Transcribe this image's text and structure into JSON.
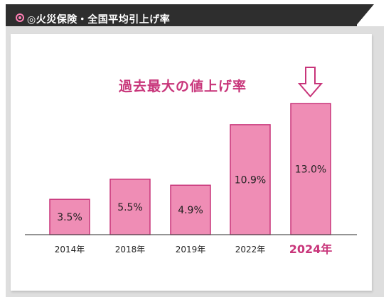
{
  "header": {
    "title": "◎火災保険・全国平均引上げ率"
  },
  "annotation": "過去最大の値上げ率",
  "colors": {
    "bar_fill": "#ef8db5",
    "bar_stroke": "#c8357a",
    "highlight_label": "#c8357a",
    "tab_bg": "#2e2e2e"
  },
  "chart_data": {
    "type": "bar",
    "title": "◎火災保険・全国平均引上げ率",
    "categories": [
      "2014年",
      "2018年",
      "2019年",
      "2022年",
      "2024年"
    ],
    "values": [
      3.5,
      5.5,
      4.9,
      10.9,
      13.0
    ],
    "data_labels": [
      "3.5%",
      "5.5%",
      "4.9%",
      "10.9%",
      "13.0%"
    ],
    "highlight_category": "2024年",
    "xlabel": "",
    "ylabel": "",
    "ylim": [
      0,
      13.0
    ],
    "grid": false,
    "legend": "none"
  }
}
